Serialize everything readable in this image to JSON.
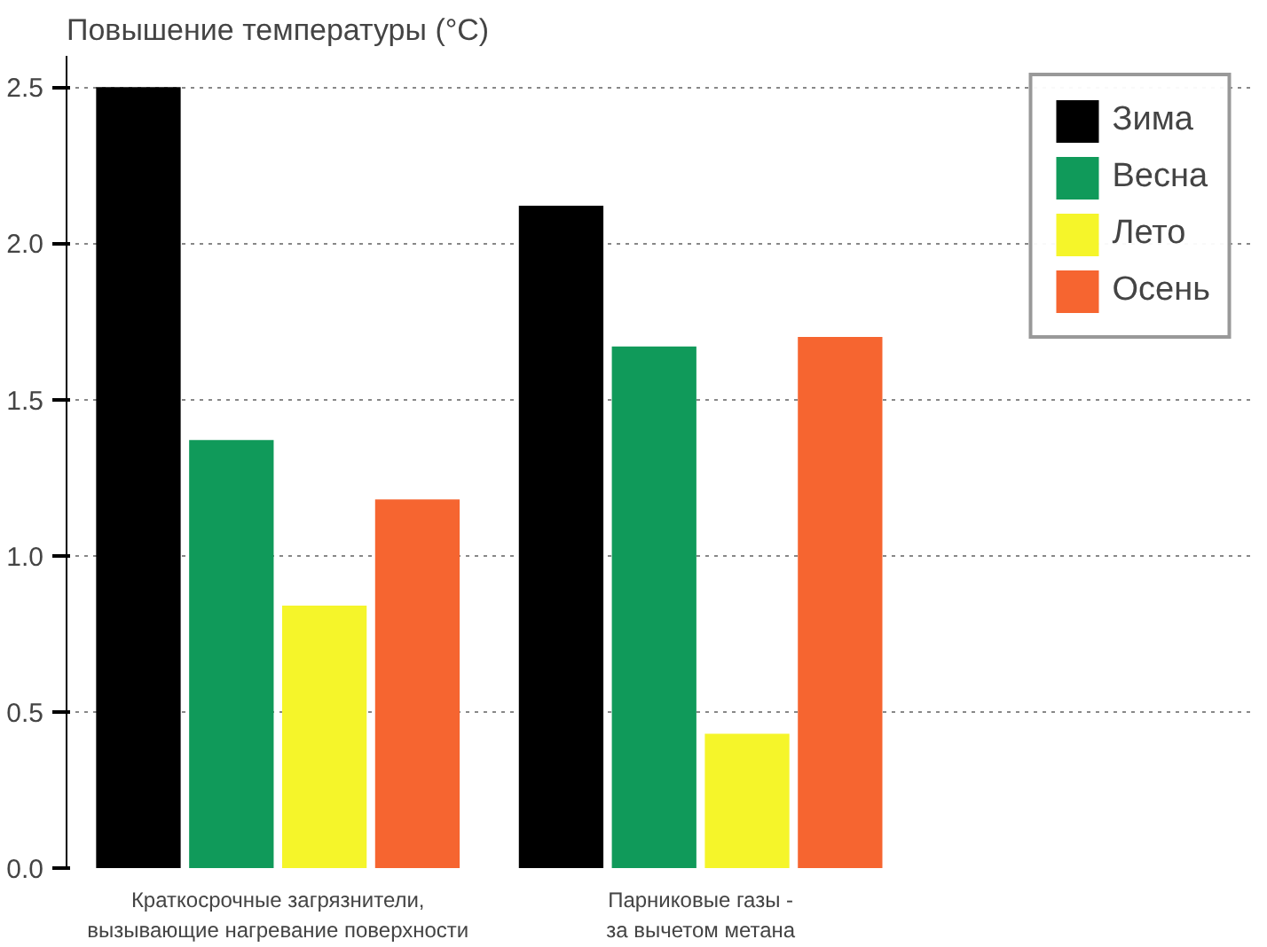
{
  "chart_data": {
    "type": "bar",
    "title": "Повышение температуры (°C)",
    "categories": [
      "Краткосрочные загрязнители,\nвызывающие нагревание поверхности",
      "Парниковые газы -\nза вычетом метана"
    ],
    "series": [
      {
        "name": "Зима",
        "color": "#000000",
        "values": [
          2.5,
          2.12
        ]
      },
      {
        "name": "Весна",
        "color": "#109a5a",
        "values": [
          1.37,
          1.67
        ]
      },
      {
        "name": "Лето",
        "color": "#f5f52a",
        "values": [
          0.84,
          0.43
        ]
      },
      {
        "name": "Осень",
        "color": "#f66530",
        "values": [
          1.18,
          1.7
        ]
      }
    ],
    "ylim": [
      0,
      2.6
    ],
    "yticks": [
      {
        "value": 0,
        "label": "0.0"
      },
      0.5,
      {
        "value": 1,
        "label": "1.0"
      },
      1.5,
      {
        "value": 2,
        "label": "2.0"
      },
      2.5
    ],
    "grid": "y",
    "legend": "top right"
  }
}
